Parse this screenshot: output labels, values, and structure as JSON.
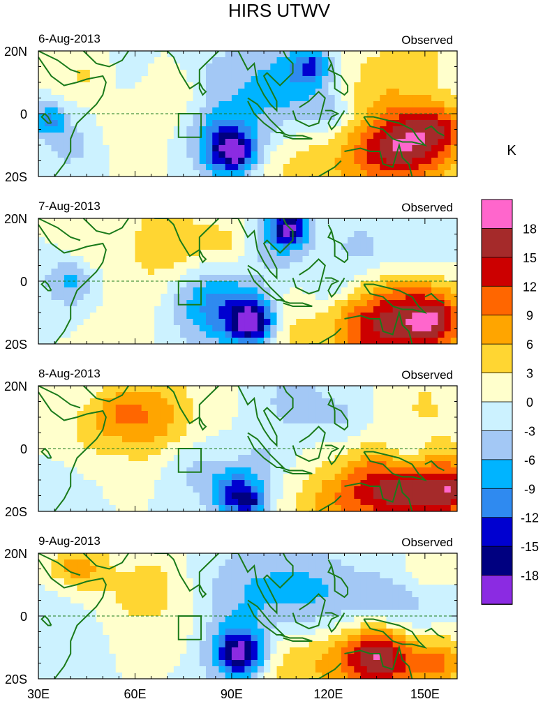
{
  "chart_data": {
    "type": "heatmap",
    "title": "HIRS UTWV",
    "units": "K",
    "xlim": [
      30,
      160
    ],
    "ylim": [
      -20,
      20
    ],
    "x_ticks": [
      {
        "value": 30,
        "label": "30E"
      },
      {
        "value": 60,
        "label": "60E"
      },
      {
        "value": 90,
        "label": "90E"
      },
      {
        "value": 120,
        "label": "120E"
      },
      {
        "value": 150,
        "label": "150E"
      }
    ],
    "y_ticks": [
      {
        "value": 20,
        "label": "20N"
      },
      {
        "value": 0,
        "label": "0"
      },
      {
        "value": -20,
        "label": "20S"
      }
    ],
    "panels": [
      {
        "date": "6-Aug-2013",
        "label": "Observed"
      },
      {
        "date": "7-Aug-2013",
        "label": "Observed"
      },
      {
        "date": "8-Aug-2013",
        "label": "Observed"
      },
      {
        "date": "9-Aug-2013",
        "label": "Observed"
      }
    ],
    "colorbar": {
      "levels": [
        "18",
        "15",
        "12",
        "9",
        "6",
        "3",
        "0",
        "-3",
        "-6",
        "-9",
        "-12",
        "-15",
        "-18"
      ],
      "colors": [
        "#ff66cc",
        "#a52a2a",
        "#cc0000",
        "#ff6600",
        "#ffa500",
        "#ffd632",
        "#ffffcc",
        "#ccf2ff",
        "#a3c8f5",
        "#00b4ff",
        "#2f8af0",
        "#0000d0",
        "#000080",
        "#8b2be2"
      ]
    }
  }
}
